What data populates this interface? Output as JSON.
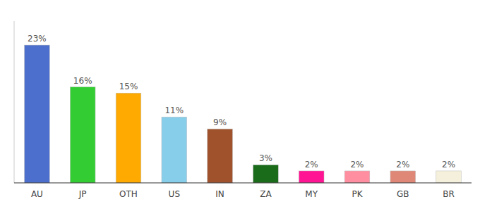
{
  "chart_data": {
    "type": "bar",
    "categories": [
      "AU",
      "JP",
      "OTH",
      "US",
      "IN",
      "ZA",
      "MY",
      "PK",
      "GB",
      "BR"
    ],
    "values": [
      23,
      16,
      15,
      11,
      9,
      3,
      2,
      2,
      2,
      2
    ],
    "value_labels": [
      "23%",
      "16%",
      "15%",
      "11%",
      "9%",
      "3%",
      "2%",
      "2%",
      "2%",
      "2%"
    ],
    "colors": [
      "#4c6fcd",
      "#33cc33",
      "#ffaa00",
      "#87ceeb",
      "#a0522d",
      "#1a6b1a",
      "#ff1493",
      "#ff8fa0",
      "#e08878",
      "#f5f0dc"
    ],
    "ylim": [
      0,
      27
    ],
    "data_labels": true,
    "tick_labels": "x",
    "grid": false
  }
}
